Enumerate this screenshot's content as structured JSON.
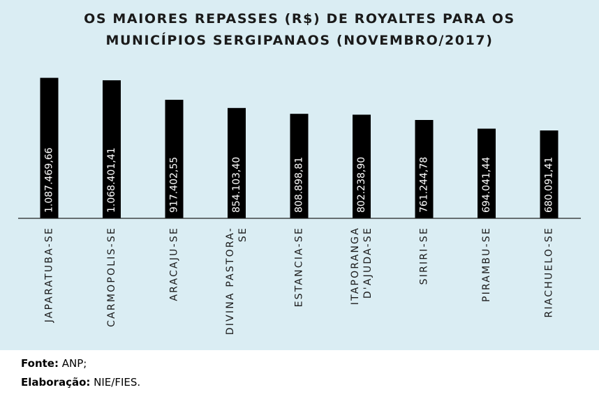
{
  "title": {
    "line1": "OS MAIORES REPASSES (R$) DE ROYALTES PARA OS",
    "line2": "MUNICÍPIOS SERGIPANAOS (NOVEMBRO/2017)"
  },
  "footer": {
    "source_label": "Fonte:",
    "source_value": " ANP;",
    "author_label": "Elaboração:",
    "author_value": " NIE/FIES."
  },
  "colors": {
    "panel": "#daedf3",
    "bar": "#000000",
    "label": "#ffffff",
    "axis": "#222222"
  },
  "chart_data": {
    "type": "bar",
    "title": "OS MAIORES REPASSES (R$) DE ROYALTES PARA OS MUNICÍPIOS SERGIPANAOS (NOVEMBRO/2017)",
    "categories": [
      "JAPARATUBA-SE",
      "CARMOPOLIS-SE",
      "ARACAJU-SE",
      "DIVINA PASTORA-SE",
      "ESTANCIA-SE",
      "ITAPORANGA D'AJUDA-SE",
      "SIRIRI-SE",
      "PIRAMBU-SE",
      "RIACHUELO-SE"
    ],
    "category_lines": [
      [
        "JAPARATUBA-SE"
      ],
      [
        "CARMOPOLIS-SE"
      ],
      [
        "ARACAJU-SE"
      ],
      [
        "DIVINA PASTORA-",
        "SE"
      ],
      [
        "ESTANCIA-SE"
      ],
      [
        "ITAPORANGA",
        "D'AJUDA-SE"
      ],
      [
        "SIRIRI-SE"
      ],
      [
        "PIRAMBU-SE"
      ],
      [
        "RIACHUELO-SE"
      ]
    ],
    "values": [
      1087469.66,
      1068401.41,
      917402.55,
      854103.4,
      808898.81,
      802238.9,
      761244.78,
      694041.44,
      680091.41
    ],
    "data_labels": [
      "1.087.469,66",
      "1.068.401,41",
      "917.402,55",
      "854.103,40",
      "808.898,81",
      "802.238,90",
      "761.244,78",
      "694.041,44",
      "680.091,41"
    ],
    "xlabel": "",
    "ylabel": "",
    "ylim": [
      0,
      1150000
    ],
    "grid": false,
    "legend": "none"
  }
}
